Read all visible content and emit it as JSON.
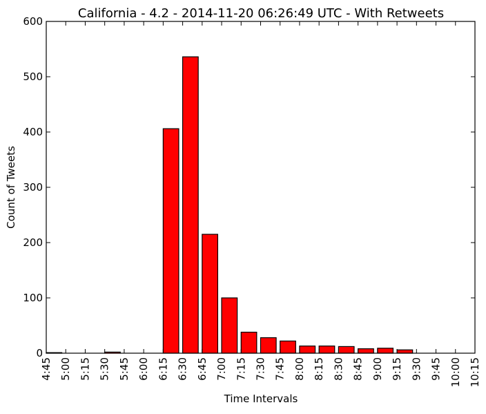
{
  "chart_data": {
    "type": "bar",
    "title": "California - 4.2 - 2014-11-20 06:26:49 UTC - With Retweets",
    "xlabel": "Time Intervals",
    "ylabel": "Count of Tweets",
    "ylim": [
      0,
      600
    ],
    "yticks": [
      0,
      100,
      200,
      300,
      400,
      500,
      600
    ],
    "xticks": [
      "4:45",
      "5:00",
      "5:15",
      "5:30",
      "5:45",
      "6:00",
      "6:15",
      "6:30",
      "6:45",
      "7:00",
      "7:15",
      "7:30",
      "7:45",
      "8:00",
      "8:15",
      "8:30",
      "8:45",
      "9:00",
      "9:15",
      "9:30",
      "9:45",
      "10:00",
      "10:15"
    ],
    "categories": [
      "4:45",
      "5:00",
      "5:15",
      "5:30",
      "5:45",
      "6:00",
      "6:15",
      "6:30",
      "6:45",
      "7:00",
      "7:15",
      "7:30",
      "7:45",
      "8:00",
      "8:15",
      "8:30",
      "8:45",
      "9:00",
      "9:15",
      "9:30",
      "9:45",
      "10:00"
    ],
    "values": [
      1,
      0,
      0,
      2,
      0,
      0,
      406,
      536,
      215,
      100,
      38,
      28,
      22,
      13,
      13,
      12,
      8,
      9,
      6,
      0,
      0,
      0
    ],
    "bar_color": "#ff0000",
    "grid": false
  }
}
